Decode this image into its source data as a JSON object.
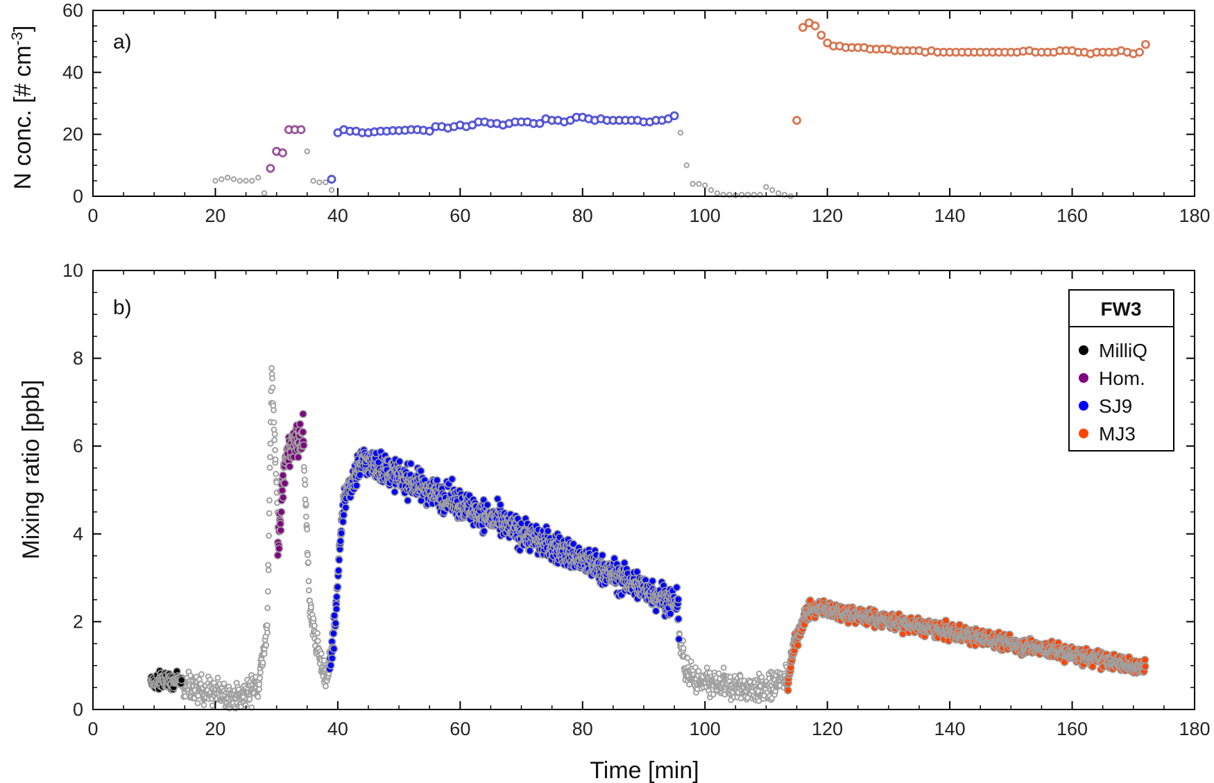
{
  "colors": {
    "MilliQ": "#000000",
    "Hom.": "#800080",
    "SJ9": "#0000FF",
    "MJ3": "#FF4500",
    "background": "#A0A0A0",
    "axis": "#000000"
  },
  "chart_data": [
    {
      "id": "a",
      "type": "scatter",
      "panel_label": "a)",
      "xlabel": "",
      "ylabel": "N conc. [# cm",
      "ylabel_sup": "-3",
      "ylabel_tail": "]",
      "xlim": [
        0,
        180
      ],
      "ylim": [
        0,
        60
      ],
      "xticks": [
        0,
        20,
        40,
        60,
        80,
        100,
        120,
        140,
        160,
        180
      ],
      "yticks": [
        0,
        20,
        40,
        60
      ],
      "series": [
        {
          "name": "background",
          "x": [
            20,
            21,
            22,
            23,
            24,
            25,
            26,
            27,
            28,
            35,
            36,
            37,
            38,
            39,
            96,
            97,
            98,
            99,
            100,
            101,
            102,
            103,
            104,
            105,
            106,
            107,
            108,
            109,
            110,
            111,
            112,
            113,
            114
          ],
          "y": [
            5,
            5.5,
            6,
            5.5,
            5,
            5,
            5,
            6,
            1,
            14.5,
            5,
            4.5,
            4.5,
            2,
            20.5,
            10,
            4,
            4,
            3.5,
            2,
            1,
            0.5,
            0.5,
            0.3,
            0.5,
            0.5,
            0.5,
            0.5,
            3,
            2,
            1,
            0.5,
            0
          ]
        },
        {
          "name": "Hom.",
          "x": [
            29,
            30,
            31,
            32,
            33,
            34
          ],
          "y": [
            9,
            14.5,
            14,
            21.5,
            21.5,
            21.5
          ]
        },
        {
          "name": "SJ9",
          "x": [
            39,
            40,
            41,
            42,
            43,
            44,
            45,
            46,
            47,
            48,
            49,
            50,
            51,
            52,
            53,
            54,
            55,
            56,
            57,
            58,
            59,
            60,
            61,
            62,
            63,
            64,
            65,
            66,
            67,
            68,
            69,
            70,
            71,
            72,
            73,
            74,
            75,
            76,
            77,
            78,
            79,
            80,
            81,
            82,
            83,
            84,
            85,
            86,
            87,
            88,
            89,
            90,
            91,
            92,
            93,
            94,
            95
          ],
          "y": [
            5.5,
            20.5,
            21.5,
            21,
            21,
            20.5,
            20.5,
            20.8,
            21,
            21,
            21.2,
            21.2,
            21.3,
            21.5,
            21.5,
            21.3,
            21,
            22.5,
            22.5,
            22,
            22.5,
            23,
            22.5,
            23,
            24,
            24,
            23.5,
            23.5,
            23,
            23.5,
            24,
            24,
            24,
            23.5,
            23.5,
            25,
            24.5,
            24.5,
            24,
            24.5,
            25.5,
            25.5,
            25,
            24.5,
            25,
            24.5,
            24.5,
            24.5,
            24.5,
            24.5,
            24.5,
            24,
            24,
            24.5,
            24.5,
            25,
            26
          ]
        },
        {
          "name": "MJ3",
          "x": [
            115,
            116,
            117,
            118,
            119,
            120,
            121,
            122,
            123,
            124,
            125,
            126,
            127,
            128,
            129,
            130,
            131,
            132,
            133,
            134,
            135,
            136,
            137,
            138,
            139,
            140,
            141,
            142,
            143,
            144,
            145,
            146,
            147,
            148,
            149,
            150,
            151,
            152,
            153,
            154,
            155,
            156,
            157,
            158,
            159,
            160,
            161,
            162,
            163,
            164,
            165,
            166,
            167,
            168,
            169,
            170,
            171,
            172
          ],
          "y": [
            24.5,
            54.5,
            56,
            55,
            52,
            49.5,
            48.5,
            48.5,
            48,
            48,
            48,
            48,
            47.5,
            47.5,
            47.5,
            47.5,
            47,
            47,
            47,
            47,
            47,
            46.5,
            47,
            46.5,
            46.5,
            46.5,
            46.5,
            46.5,
            46.5,
            46.5,
            46.5,
            46.5,
            46.5,
            46.5,
            46.5,
            46.5,
            46.5,
            46.8,
            47,
            46.5,
            46.5,
            46.5,
            46.5,
            47,
            47,
            47,
            46.5,
            46.5,
            46,
            46.5,
            46.5,
            46.5,
            46.5,
            47,
            46.5,
            46,
            46.5,
            49
          ]
        }
      ]
    },
    {
      "id": "b",
      "type": "scatter",
      "panel_label": "b)",
      "xlabel": "Time [min]",
      "ylabel": "Mixing ratio [ppb]",
      "xlim": [
        0,
        180
      ],
      "ylim": [
        0,
        10
      ],
      "xticks": [
        0,
        20,
        40,
        60,
        80,
        100,
        120,
        140,
        160,
        180
      ],
      "yticks": [
        0,
        2,
        4,
        6,
        8,
        10
      ],
      "point_interval_min": 0.05,
      "series": [
        {
          "name": "MilliQ",
          "segments": [
            [
              9.5,
              0.65,
              14.5,
              0.65
            ]
          ],
          "noise": 0.13
        },
        {
          "name": "background",
          "segments": [
            [
              14.5,
              0.55,
              18,
              0.45
            ],
            [
              18,
              0.45,
              24,
              0.25
            ],
            [
              24,
              0.25,
              27,
              0.6
            ],
            [
              27,
              0.6,
              28.5,
              1.8
            ],
            [
              28.5,
              1.8,
              29.2,
              7.8
            ],
            [
              29.2,
              7.8,
              30.2,
              4.5
            ],
            [
              34.5,
              5.5,
              35.5,
              2.2
            ],
            [
              35.5,
              2.2,
              37.5,
              0.9
            ],
            [
              37.5,
              0.9,
              38.6,
              0.7
            ],
            [
              95.8,
              1.8,
              96.8,
              0.9
            ],
            [
              96.8,
              0.9,
              99,
              0.6
            ],
            [
              99,
              0.6,
              110,
              0.45
            ],
            [
              110,
              0.45,
              113.5,
              0.75
            ]
          ],
          "noise": 0.15
        },
        {
          "name": "Hom.",
          "segments": [
            [
              30.2,
              3.8,
              31.5,
              5.8
            ],
            [
              31.5,
              5.8,
              34.5,
              6.3
            ]
          ],
          "noise": 0.35
        },
        {
          "name": "SJ9",
          "segments": [
            [
              38.6,
              0.8,
              39.5,
              1.9
            ],
            [
              39.5,
              1.9,
              41,
              4.8
            ],
            [
              41,
              4.8,
              44,
              5.7
            ],
            [
              44,
              5.7,
              95.5,
              2.4
            ],
            [
              95.5,
              2.4,
              95.8,
              1.8
            ]
          ],
          "noise": 0.28
        },
        {
          "name": "MJ3",
          "segments": [
            [
              113.5,
              0.6,
              114.5,
              1.4
            ],
            [
              114.5,
              1.4,
              116.5,
              2.2
            ],
            [
              116.5,
              2.2,
              119,
              2.3
            ],
            [
              119,
              2.3,
              172,
              0.95
            ]
          ],
          "noise": 0.15
        }
      ],
      "legend": {
        "title": "FW3",
        "position": "top-right",
        "entries": [
          "MilliQ",
          "Hom.",
          "SJ9",
          "MJ3"
        ]
      }
    }
  ]
}
